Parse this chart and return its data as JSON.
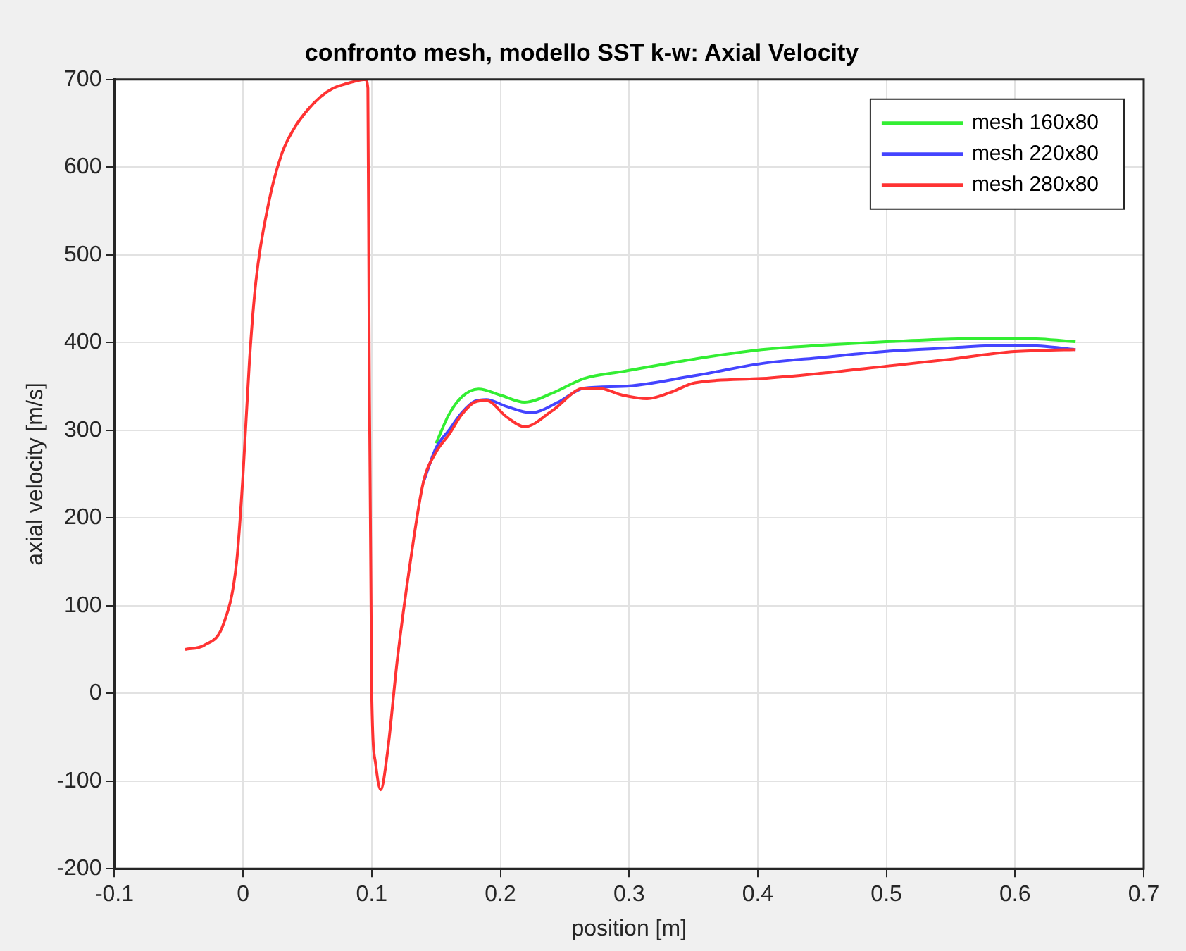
{
  "chart_data": {
    "type": "line",
    "title": "confronto mesh, modello SST k-w: Axial Velocity",
    "xlabel": "position [m]",
    "ylabel": "axial velocity [m/s]",
    "xlim": [
      -0.1,
      0.7
    ],
    "xticks": [
      -0.1,
      0,
      0.1,
      0.2,
      0.3,
      0.4,
      0.5,
      0.6,
      0.7
    ],
    "ylim": [
      -200,
      700
    ],
    "yticks": [
      -200,
      -100,
      0,
      100,
      200,
      300,
      400,
      500,
      600,
      700
    ],
    "grid": true,
    "legend": "top right",
    "marker": "none",
    "line_style": "solid",
    "series": [
      {
        "name": "mesh 160x80",
        "color": "#33ee33",
        "x": [
          0.15,
          0.16,
          0.17,
          0.183,
          0.2,
          0.219,
          0.24,
          0.265,
          0.295,
          0.35,
          0.403,
          0.45,
          0.5,
          0.55,
          0.593,
          0.62,
          0.647
        ],
        "values": [
          285,
          318,
          338,
          347,
          340,
          332,
          342,
          359,
          367,
          381,
          392,
          397,
          401,
          404,
          405,
          404,
          401
        ]
      },
      {
        "name": "mesh 220x80",
        "color": "#4444ff",
        "x": [
          0.14,
          0.15,
          0.16,
          0.17,
          0.18,
          0.189,
          0.205,
          0.224,
          0.245,
          0.265,
          0.295,
          0.35,
          0.403,
          0.45,
          0.5,
          0.55,
          0.593,
          0.62,
          0.647
        ],
        "values": [
          240,
          280,
          300,
          320,
          333,
          335,
          327,
          320,
          332,
          348,
          350,
          362,
          376,
          383,
          390,
          394,
          397,
          396,
          392
        ]
      },
      {
        "name": "mesh 280x80",
        "color": "#ff3333",
        "x": [
          -0.045,
          -0.03,
          -0.015,
          -0.005,
          0,
          0.005,
          0.01,
          0.02,
          0.03,
          0.04,
          0.05,
          0.06,
          0.07,
          0.08,
          0.095,
          0.097,
          0.098,
          0.1,
          0.103,
          0.107,
          0.112,
          0.12,
          0.13,
          0.14,
          0.15,
          0.16,
          0.17,
          0.18,
          0.189,
          0.205,
          0.219,
          0.24,
          0.265,
          0.276,
          0.295,
          0.314,
          0.332,
          0.351,
          0.403,
          0.45,
          0.5,
          0.55,
          0.593,
          0.62,
          0.647
        ],
        "values": [
          50,
          55,
          80,
          150,
          250,
          380,
          470,
          560,
          615,
          645,
          665,
          680,
          690,
          695,
          700,
          690,
          400,
          0,
          -80,
          -110,
          -70,
          40,
          150,
          240,
          275,
          295,
          318,
          332,
          334,
          315,
          304,
          322,
          348,
          348,
          340,
          336,
          343,
          354,
          359,
          365,
          373,
          381,
          389,
          391,
          392
        ]
      }
    ]
  }
}
